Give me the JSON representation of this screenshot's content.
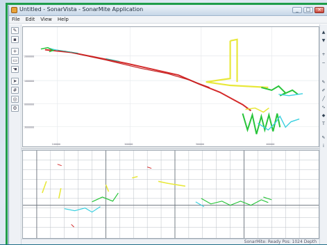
{
  "window": {
    "title": "Untitled - SonarVista - SonarMite Application"
  },
  "menu": {
    "items": [
      "File",
      "Edit",
      "View",
      "Help"
    ]
  },
  "title_buttons": {
    "minimize": "_",
    "maximize": "□",
    "close": "×"
  },
  "left_tools": {
    "icons": [
      "pencil-icon",
      "save-icon",
      "zoom-icon",
      "select-icon",
      "hand-icon",
      "cursor-icon",
      "grid-icon",
      "target-icon",
      "settings-icon",
      "layers-icon"
    ]
  },
  "map_view": {
    "y_ticks": [
      "2000000",
      "1000000",
      "0000000",
      "3000000"
    ],
    "x_ticks": [
      "100000",
      "200000",
      "300000",
      "400000"
    ]
  },
  "colors": {
    "track_red": "#d42a2a",
    "track_green": "#28c43a",
    "track_cyan": "#3ad0e0",
    "track_yellow": "#e8e83a",
    "border_green": "#1f9d4a"
  },
  "status": {
    "text": "SonarMite: Ready  Pos: 1024  Depth"
  }
}
